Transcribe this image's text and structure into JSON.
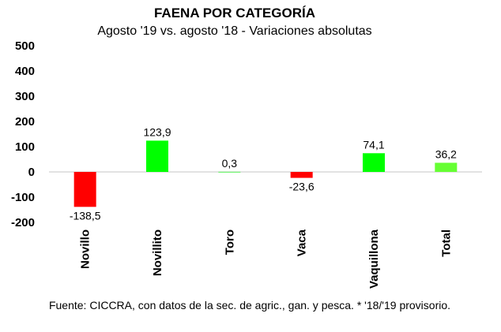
{
  "chart_data": {
    "type": "bar",
    "title": "FAENA POR CATEGORÍA",
    "subtitle": "Agosto '19 vs. agosto '18 - Variaciones absolutas",
    "categories": [
      "Novillo",
      "Novillito",
      "Toro",
      "Vaca",
      "Vaquillona",
      "Total"
    ],
    "values": [
      -138.5,
      123.9,
      0.3,
      -23.6,
      74.1,
      36.2
    ],
    "value_labels": [
      "-138,5",
      "123,9",
      "0,3",
      "-23,6",
      "74,1",
      "36,2"
    ],
    "bar_colors": [
      "#ff0000",
      "#00ff00",
      "#00ff00",
      "#ff0000",
      "#00ff00",
      "#66ff33"
    ],
    "ylim": [
      -200,
      500
    ],
    "yticks": [
      -200,
      -100,
      0,
      100,
      200,
      300,
      400,
      500
    ],
    "ytick_labels": [
      "-200",
      "-100",
      "0",
      "100",
      "200",
      "300",
      "400",
      "500"
    ],
    "grid": false,
    "legend": "none",
    "source": "Fuente: CICCRA, con datos de la sec. de agric., gan. y pesca. * '18/'19 provisorio."
  }
}
